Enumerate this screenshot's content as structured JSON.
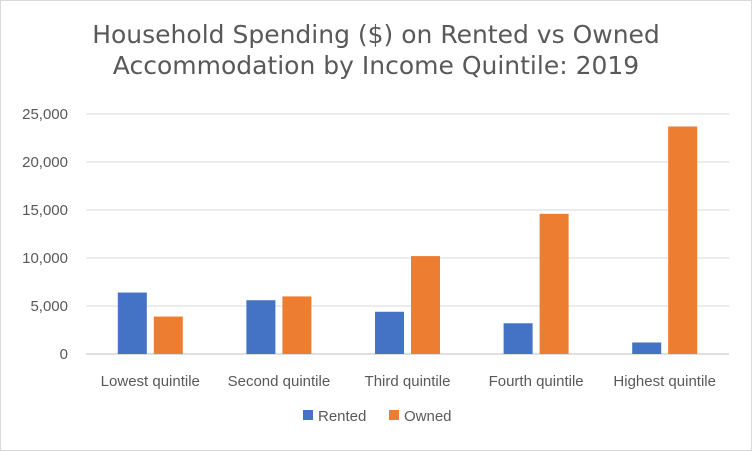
{
  "chart_data": {
    "type": "bar",
    "title_lines": [
      "Household Spending ($) on Rented vs Owned",
      "Accommodation by Income Quintile: 2019"
    ],
    "categories": [
      "Lowest quintile",
      "Second quintile",
      "Third quintile",
      "Fourth quintile",
      "Highest quintile"
    ],
    "series": [
      {
        "name": "Rented",
        "color": "#4472c4",
        "values": [
          6400,
          5600,
          4400,
          3200,
          1200
        ]
      },
      {
        "name": "Owned",
        "color": "#ed7d31",
        "values": [
          3900,
          6000,
          10200,
          14600,
          23700
        ]
      }
    ],
    "y_ticks": [
      "0",
      "5,000",
      "10,000",
      "15,000",
      "20,000",
      "25,000"
    ],
    "ylim": [
      0,
      25000
    ],
    "grid": true,
    "legend_position": "bottom",
    "xlabel": "",
    "ylabel": ""
  }
}
